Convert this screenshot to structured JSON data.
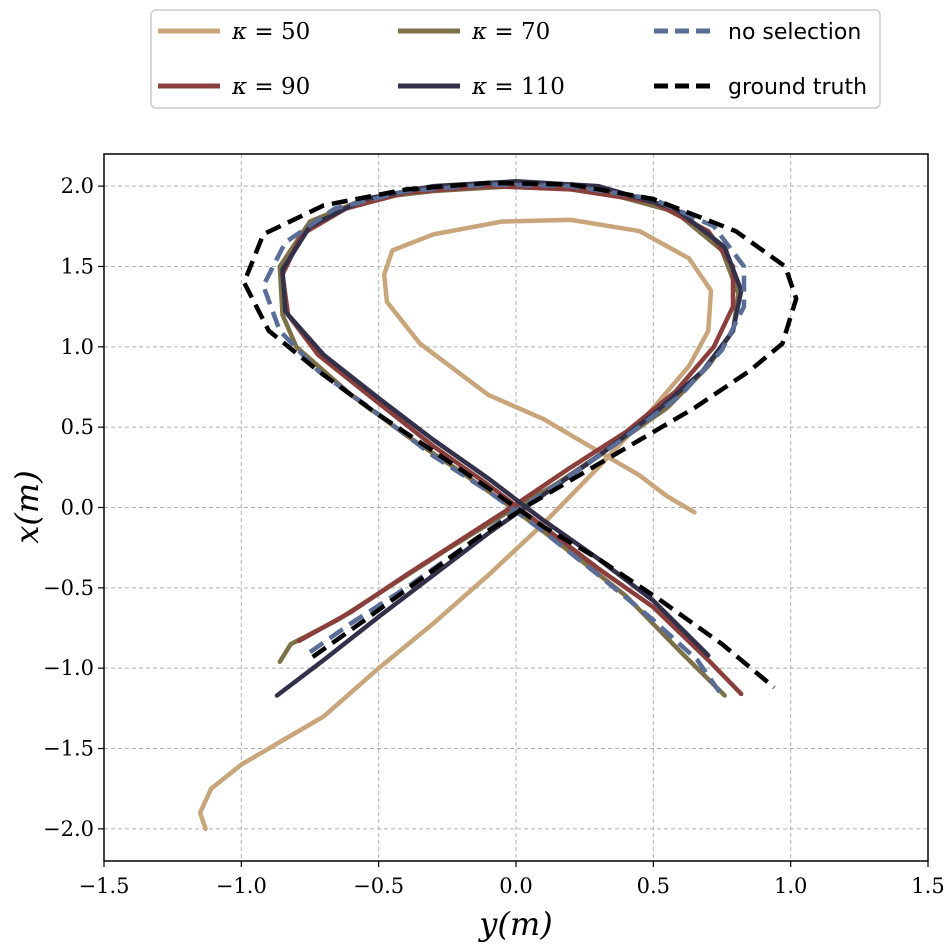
{
  "chart_data": {
    "type": "line",
    "title": "",
    "xlabel": "y(m)",
    "ylabel": "x(m)",
    "xlim": [
      -1.5,
      1.5
    ],
    "ylim": [
      -2.2,
      2.2
    ],
    "xticks": [
      -1.5,
      -1.0,
      -0.5,
      0.0,
      0.5,
      1.0,
      1.5
    ],
    "yticks": [
      -2.0,
      -1.5,
      -1.0,
      -0.5,
      0.0,
      0.5,
      1.0,
      1.5,
      2.0
    ],
    "xtick_labels": [
      "−1.5",
      "−1.0",
      "−0.5",
      "0.0",
      "0.5",
      "1.0",
      "1.5"
    ],
    "ytick_labels": [
      "−2.0",
      "−1.5",
      "−1.0",
      "−0.5",
      "0.0",
      "0.5",
      "1.0",
      "1.5",
      "2.0"
    ],
    "grid": true,
    "legend_position": "top",
    "series": [
      {
        "name": "κ = 50",
        "color": "#c8a57a",
        "dash": "solid",
        "points": [
          [
            -1.13,
            -2.0
          ],
          [
            -1.15,
            -1.9
          ],
          [
            -1.11,
            -1.75
          ],
          [
            -1.0,
            -1.6
          ],
          [
            -0.85,
            -1.45
          ],
          [
            -0.7,
            -1.3
          ],
          [
            -0.5,
            -1.0
          ],
          [
            -0.3,
            -0.72
          ],
          [
            -0.1,
            -0.42
          ],
          [
            0.1,
            -0.1
          ],
          [
            0.3,
            0.25
          ],
          [
            0.48,
            0.58
          ],
          [
            0.63,
            0.88
          ],
          [
            0.7,
            1.1
          ],
          [
            0.71,
            1.35
          ],
          [
            0.63,
            1.55
          ],
          [
            0.45,
            1.72
          ],
          [
            0.2,
            1.79
          ],
          [
            -0.05,
            1.78
          ],
          [
            -0.3,
            1.7
          ],
          [
            -0.45,
            1.6
          ],
          [
            -0.48,
            1.45
          ],
          [
            -0.47,
            1.28
          ],
          [
            -0.35,
            1.02
          ],
          [
            -0.1,
            0.7
          ],
          [
            0.1,
            0.55
          ],
          [
            0.3,
            0.35
          ],
          [
            0.45,
            0.2
          ],
          [
            0.55,
            0.07
          ],
          [
            0.65,
            -0.03
          ]
        ]
      },
      {
        "name": "κ = 70",
        "color": "#7d7148",
        "dash": "solid",
        "points": [
          [
            -0.86,
            -0.96
          ],
          [
            -0.82,
            -0.85
          ],
          [
            -0.65,
            -0.7
          ],
          [
            -0.45,
            -0.48
          ],
          [
            -0.25,
            -0.26
          ],
          [
            -0.05,
            -0.05
          ],
          [
            0.15,
            0.15
          ],
          [
            0.35,
            0.38
          ],
          [
            0.55,
            0.62
          ],
          [
            0.7,
            0.88
          ],
          [
            0.79,
            1.1
          ],
          [
            0.81,
            1.33
          ],
          [
            0.75,
            1.6
          ],
          [
            0.58,
            1.84
          ],
          [
            0.3,
            1.97
          ],
          [
            0.0,
            2.0
          ],
          [
            -0.3,
            1.97
          ],
          [
            -0.55,
            1.92
          ],
          [
            -0.75,
            1.78
          ],
          [
            -0.86,
            1.5
          ],
          [
            -0.85,
            1.2
          ],
          [
            -0.8,
            1.0
          ],
          [
            -0.6,
            0.7
          ],
          [
            -0.4,
            0.45
          ],
          [
            -0.2,
            0.22
          ],
          [
            0.0,
            -0.02
          ],
          [
            0.2,
            -0.28
          ],
          [
            0.4,
            -0.55
          ],
          [
            0.6,
            -0.9
          ],
          [
            0.76,
            -1.17
          ]
        ]
      },
      {
        "name": "κ = 90",
        "color": "#8b3f3c",
        "dash": "solid",
        "points": [
          [
            -0.79,
            -0.83
          ],
          [
            -0.6,
            -0.65
          ],
          [
            -0.4,
            -0.42
          ],
          [
            -0.2,
            -0.2
          ],
          [
            0.0,
            0.02
          ],
          [
            0.2,
            0.25
          ],
          [
            0.4,
            0.47
          ],
          [
            0.58,
            0.72
          ],
          [
            0.72,
            1.0
          ],
          [
            0.79,
            1.25
          ],
          [
            0.79,
            1.5
          ],
          [
            0.7,
            1.72
          ],
          [
            0.5,
            1.9
          ],
          [
            0.2,
            1.98
          ],
          [
            -0.1,
            2.0
          ],
          [
            -0.4,
            1.96
          ],
          [
            -0.62,
            1.86
          ],
          [
            -0.78,
            1.7
          ],
          [
            -0.85,
            1.45
          ],
          [
            -0.83,
            1.2
          ],
          [
            -0.72,
            0.95
          ],
          [
            -0.5,
            0.65
          ],
          [
            -0.3,
            0.38
          ],
          [
            -0.1,
            0.14
          ],
          [
            0.1,
            -0.12
          ],
          [
            0.3,
            -0.38
          ],
          [
            0.5,
            -0.62
          ],
          [
            0.7,
            -0.95
          ],
          [
            0.82,
            -1.16
          ]
        ]
      },
      {
        "name": "κ = 110",
        "color": "#33304a",
        "dash": "solid",
        "points": [
          [
            -0.87,
            -1.17
          ],
          [
            -0.7,
            -0.95
          ],
          [
            -0.5,
            -0.68
          ],
          [
            -0.3,
            -0.42
          ],
          [
            -0.1,
            -0.16
          ],
          [
            0.1,
            0.08
          ],
          [
            0.3,
            0.32
          ],
          [
            0.5,
            0.58
          ],
          [
            0.68,
            0.85
          ],
          [
            0.79,
            1.1
          ],
          [
            0.82,
            1.35
          ],
          [
            0.76,
            1.62
          ],
          [
            0.58,
            1.86
          ],
          [
            0.3,
            2.0
          ],
          [
            0.0,
            2.03
          ],
          [
            -0.3,
            2.0
          ],
          [
            -0.55,
            1.92
          ],
          [
            -0.75,
            1.75
          ],
          [
            -0.85,
            1.48
          ],
          [
            -0.84,
            1.22
          ],
          [
            -0.7,
            0.95
          ],
          [
            -0.5,
            0.68
          ],
          [
            -0.3,
            0.42
          ],
          [
            -0.1,
            0.18
          ],
          [
            0.1,
            -0.08
          ],
          [
            0.3,
            -0.32
          ],
          [
            0.5,
            -0.58
          ],
          [
            0.7,
            -0.92
          ]
        ]
      },
      {
        "name": "no selection",
        "color": "#5a6d96",
        "dash": "dashed",
        "points": [
          [
            -0.75,
            -0.9
          ],
          [
            -0.6,
            -0.72
          ],
          [
            -0.4,
            -0.5
          ],
          [
            -0.2,
            -0.26
          ],
          [
            0.0,
            -0.02
          ],
          [
            0.2,
            0.2
          ],
          [
            0.4,
            0.44
          ],
          [
            0.6,
            0.7
          ],
          [
            0.75,
            0.98
          ],
          [
            0.83,
            1.25
          ],
          [
            0.83,
            1.5
          ],
          [
            0.72,
            1.75
          ],
          [
            0.5,
            1.92
          ],
          [
            0.2,
            2.0
          ],
          [
            -0.1,
            2.01
          ],
          [
            -0.4,
            1.97
          ],
          [
            -0.66,
            1.86
          ],
          [
            -0.84,
            1.65
          ],
          [
            -0.92,
            1.38
          ],
          [
            -0.86,
            1.1
          ],
          [
            -0.72,
            0.85
          ],
          [
            -0.5,
            0.58
          ],
          [
            -0.3,
            0.32
          ],
          [
            -0.1,
            0.1
          ],
          [
            0.1,
            -0.15
          ],
          [
            0.3,
            -0.42
          ],
          [
            0.5,
            -0.7
          ],
          [
            0.66,
            -0.95
          ],
          [
            0.75,
            -1.17
          ]
        ]
      },
      {
        "name": "ground truth",
        "color": "#000000",
        "dash": "dashed",
        "points": [
          [
            -0.74,
            -0.93
          ],
          [
            -0.55,
            -0.7
          ],
          [
            -0.35,
            -0.45
          ],
          [
            -0.15,
            -0.2
          ],
          [
            0.05,
            0.02
          ],
          [
            0.25,
            0.22
          ],
          [
            0.45,
            0.42
          ],
          [
            0.65,
            0.62
          ],
          [
            0.85,
            0.85
          ],
          [
            0.97,
            1.02
          ],
          [
            1.02,
            1.3
          ],
          [
            0.98,
            1.5
          ],
          [
            0.8,
            1.72
          ],
          [
            0.5,
            1.92
          ],
          [
            0.2,
            2.01
          ],
          [
            -0.1,
            2.02
          ],
          [
            -0.4,
            1.98
          ],
          [
            -0.7,
            1.88
          ],
          [
            -0.92,
            1.7
          ],
          [
            -0.99,
            1.4
          ],
          [
            -0.9,
            1.1
          ],
          [
            -0.72,
            0.85
          ],
          [
            -0.52,
            0.6
          ],
          [
            -0.3,
            0.35
          ],
          [
            -0.1,
            0.12
          ],
          [
            0.1,
            -0.12
          ],
          [
            0.3,
            -0.32
          ],
          [
            0.52,
            -0.57
          ],
          [
            0.75,
            -0.85
          ],
          [
            0.94,
            -1.12
          ]
        ]
      }
    ],
    "legend": [
      {
        "series": 0,
        "math": true,
        "var": "κ",
        "value": "50"
      },
      {
        "series": 1,
        "math": true,
        "var": "κ",
        "value": "70"
      },
      {
        "series": 4,
        "math": false,
        "text": "no selection"
      },
      {
        "series": 2,
        "math": true,
        "var": "κ",
        "value": "90"
      },
      {
        "series": 3,
        "math": true,
        "var": "κ",
        "value": "110"
      },
      {
        "series": 5,
        "math": false,
        "text": "ground truth"
      }
    ]
  }
}
